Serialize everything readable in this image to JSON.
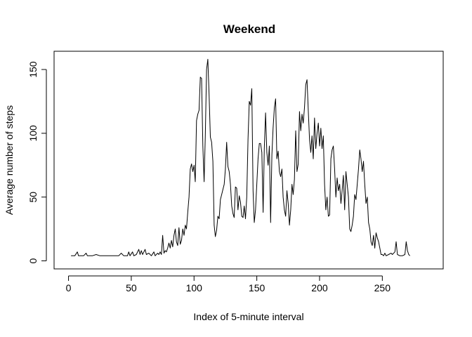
{
  "chart_data": {
    "type": "line",
    "title": "Weekend",
    "xlabel": "Index of 5-minute interval",
    "ylabel": "Average number of steps",
    "xlim": [
      -11.5,
      298.5
    ],
    "ylim": [
      -6.3,
      164.3
    ],
    "xticks": [
      0,
      50,
      100,
      150,
      200,
      250
    ],
    "yticks": [
      0,
      50,
      100,
      150
    ],
    "grid": false,
    "legend": "none",
    "line_color": "#000000",
    "series": [
      {
        "points": [
          [
            2,
            4
          ],
          [
            5,
            4
          ],
          [
            7,
            7
          ],
          [
            8,
            4
          ],
          [
            12,
            4
          ],
          [
            14,
            6
          ],
          [
            15,
            4
          ],
          [
            19,
            4
          ],
          [
            22,
            5
          ],
          [
            25,
            4
          ],
          [
            30,
            4
          ],
          [
            35,
            4
          ],
          [
            40,
            4
          ],
          [
            42,
            6
          ],
          [
            44,
            4
          ],
          [
            47,
            4
          ],
          [
            48,
            7
          ],
          [
            49,
            4
          ],
          [
            51,
            7
          ],
          [
            52,
            4
          ],
          [
            54,
            5
          ],
          [
            56,
            9
          ],
          [
            57,
            5
          ],
          [
            58,
            8
          ],
          [
            59,
            5
          ],
          [
            61,
            9
          ],
          [
            62,
            5
          ],
          [
            64,
            6
          ],
          [
            66,
            4
          ],
          [
            68,
            7
          ],
          [
            69,
            4
          ],
          [
            71,
            6
          ],
          [
            72,
            5
          ],
          [
            73,
            7
          ],
          [
            74,
            5
          ],
          [
            75,
            20
          ],
          [
            76,
            6
          ],
          [
            77,
            8
          ],
          [
            78,
            7
          ],
          [
            79,
            10
          ],
          [
            80,
            14
          ],
          [
            81,
            10
          ],
          [
            82,
            16
          ],
          [
            83,
            11
          ],
          [
            84,
            20
          ],
          [
            85,
            25
          ],
          [
            86,
            15
          ],
          [
            87,
            12
          ],
          [
            88,
            26
          ],
          [
            89,
            13
          ],
          [
            90,
            16
          ],
          [
            91,
            25
          ],
          [
            92,
            20
          ],
          [
            93,
            28
          ],
          [
            94,
            25
          ],
          [
            95,
            38
          ],
          [
            96,
            50
          ],
          [
            97,
            72
          ],
          [
            98,
            76
          ],
          [
            99,
            70
          ],
          [
            100,
            75
          ],
          [
            101,
            62
          ],
          [
            102,
            110
          ],
          [
            103,
            115
          ],
          [
            104,
            118
          ],
          [
            105,
            144
          ],
          [
            106,
            143
          ],
          [
            107,
            90
          ],
          [
            108,
            62
          ],
          [
            109,
            98
          ],
          [
            110,
            150
          ],
          [
            111,
            158
          ],
          [
            112,
            130
          ],
          [
            113,
            97
          ],
          [
            114,
            93
          ],
          [
            115,
            78
          ],
          [
            116,
            28
          ],
          [
            117,
            19
          ],
          [
            118,
            24
          ],
          [
            119,
            35
          ],
          [
            120,
            33
          ],
          [
            121,
            48
          ],
          [
            122,
            52
          ],
          [
            123,
            56
          ],
          [
            124,
            60
          ],
          [
            125,
            72
          ],
          [
            126,
            93
          ],
          [
            127,
            74
          ],
          [
            128,
            70
          ],
          [
            129,
            60
          ],
          [
            130,
            43
          ],
          [
            131,
            37
          ],
          [
            132,
            34
          ],
          [
            133,
            58
          ],
          [
            134,
            57
          ],
          [
            135,
            40
          ],
          [
            136,
            51
          ],
          [
            137,
            46
          ],
          [
            138,
            35
          ],
          [
            139,
            34
          ],
          [
            140,
            43
          ],
          [
            141,
            33
          ],
          [
            142,
            50
          ],
          [
            143,
            95
          ],
          [
            144,
            125
          ],
          [
            145,
            122
          ],
          [
            146,
            135
          ],
          [
            147,
            55
          ],
          [
            148,
            30
          ],
          [
            149,
            40
          ],
          [
            150,
            60
          ],
          [
            151,
            80
          ],
          [
            152,
            92
          ],
          [
            153,
            92
          ],
          [
            154,
            85
          ],
          [
            155,
            38
          ],
          [
            156,
            88
          ],
          [
            157,
            116
          ],
          [
            158,
            85
          ],
          [
            159,
            75
          ],
          [
            160,
            90
          ],
          [
            161,
            30
          ],
          [
            162,
            83
          ],
          [
            163,
            104
          ],
          [
            164,
            120
          ],
          [
            165,
            127
          ],
          [
            166,
            80
          ],
          [
            167,
            86
          ],
          [
            168,
            70
          ],
          [
            169,
            66
          ],
          [
            170,
            72
          ],
          [
            171,
            50
          ],
          [
            172,
            40
          ],
          [
            173,
            35
          ],
          [
            174,
            55
          ],
          [
            175,
            45
          ],
          [
            176,
            28
          ],
          [
            177,
            40
          ],
          [
            178,
            60
          ],
          [
            179,
            52
          ],
          [
            180,
            64
          ],
          [
            181,
            102
          ],
          [
            182,
            70
          ],
          [
            183,
            76
          ],
          [
            184,
            117
          ],
          [
            185,
            102
          ],
          [
            186,
            115
          ],
          [
            187,
            108
          ],
          [
            188,
            120
          ],
          [
            189,
            138
          ],
          [
            190,
            142
          ],
          [
            191,
            118
          ],
          [
            192,
            95
          ],
          [
            193,
            85
          ],
          [
            194,
            98
          ],
          [
            195,
            80
          ],
          [
            196,
            112
          ],
          [
            197,
            88
          ],
          [
            198,
            100
          ],
          [
            199,
            108
          ],
          [
            200,
            90
          ],
          [
            201,
            104
          ],
          [
            202,
            88
          ],
          [
            203,
            98
          ],
          [
            204,
            60
          ],
          [
            205,
            40
          ],
          [
            206,
            50
          ],
          [
            207,
            35
          ],
          [
            208,
            36
          ],
          [
            209,
            80
          ],
          [
            210,
            87
          ],
          [
            211,
            90
          ],
          [
            212,
            72
          ],
          [
            213,
            50
          ],
          [
            214,
            65
          ],
          [
            215,
            55
          ],
          [
            216,
            60
          ],
          [
            217,
            45
          ],
          [
            218,
            55
          ],
          [
            219,
            67
          ],
          [
            220,
            40
          ],
          [
            221,
            70
          ],
          [
            222,
            60
          ],
          [
            223,
            50
          ],
          [
            224,
            25
          ],
          [
            225,
            23
          ],
          [
            226,
            28
          ],
          [
            227,
            35
          ],
          [
            228,
            52
          ],
          [
            229,
            48
          ],
          [
            230,
            60
          ],
          [
            231,
            72
          ],
          [
            232,
            87
          ],
          [
            233,
            80
          ],
          [
            234,
            70
          ],
          [
            235,
            78
          ],
          [
            236,
            60
          ],
          [
            237,
            45
          ],
          [
            238,
            50
          ],
          [
            239,
            30
          ],
          [
            240,
            25
          ],
          [
            241,
            15
          ],
          [
            242,
            12
          ],
          [
            243,
            20
          ],
          [
            244,
            10
          ],
          [
            245,
            22
          ],
          [
            246,
            18
          ],
          [
            247,
            15
          ],
          [
            248,
            10
          ],
          [
            249,
            5
          ],
          [
            250,
            5
          ],
          [
            251,
            4
          ],
          [
            252,
            6
          ],
          [
            253,
            4
          ],
          [
            255,
            5
          ],
          [
            257,
            6
          ],
          [
            258,
            5
          ],
          [
            260,
            7
          ],
          [
            261,
            15
          ],
          [
            262,
            5
          ],
          [
            264,
            4
          ],
          [
            266,
            4
          ],
          [
            268,
            5
          ],
          [
            269,
            15
          ],
          [
            270,
            8
          ],
          [
            271,
            5
          ],
          [
            272,
            4
          ]
        ]
      }
    ]
  }
}
